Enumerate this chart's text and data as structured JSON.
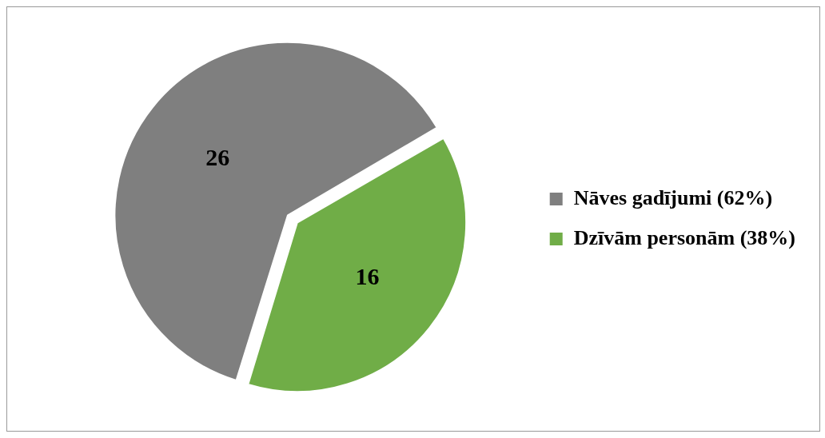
{
  "chart_data": {
    "type": "pie",
    "categories": [
      "Nāves gadījumi (62%)",
      "Dzīvām personām (38%)"
    ],
    "values": [
      26,
      16
    ],
    "colors": [
      "#7f7f7f",
      "#70ad47"
    ],
    "data_labels": true,
    "legend": "right"
  }
}
